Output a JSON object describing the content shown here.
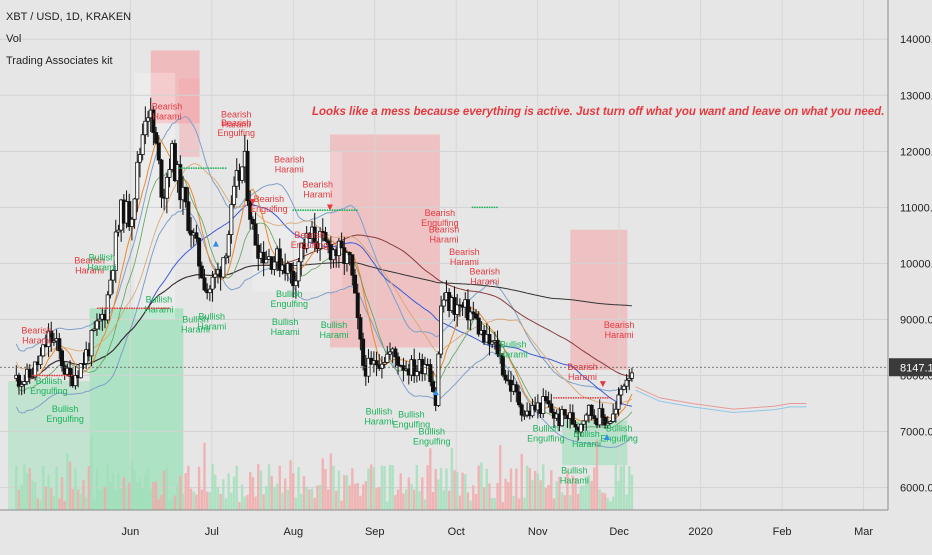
{
  "legend": {
    "symbol_line": "XBT / USD, 1D, KRAKEN",
    "volume_label": "Vol",
    "indicator_label": "Trading Associates kit"
  },
  "annotation": "Looks like a mess because everything is active. Just turn off what you want and leave on what you need.",
  "colors": {
    "background": "#e6e6e6",
    "bull_text": "#19b35a",
    "bear_text": "#e5393f",
    "bear_zone": "#f4a8ab",
    "bull_zone": "#9be0b8",
    "up_arrow": "#2f8fe8",
    "down_arrow": "#e5393f",
    "candle": "#111111",
    "price_tag_bg": "#3a3a3a"
  },
  "chart_data": {
    "type": "candlestick",
    "symbol": "XBT / USD",
    "timeframe": "1D",
    "exchange": "KRAKEN",
    "x_tick_labels": [
      "Jun",
      "Jul",
      "Aug",
      "Sep",
      "Oct",
      "Nov",
      "Dec",
      "2020",
      "Feb",
      "Mar"
    ],
    "y_tick_labels": [
      "14000.0",
      "13000.0",
      "12000.0",
      "11000.0",
      "10000.0",
      "9000.0",
      "8000.0",
      "7000.0",
      "6000.0"
    ],
    "y_ticks": [
      14000,
      13000,
      12000,
      11000,
      10000,
      9000,
      8000,
      7000,
      6000
    ],
    "ylim": [
      5600,
      14700
    ],
    "last_price": 8147.1,
    "last_price_label": "8147.1",
    "close_path": [
      {
        "month": 4.75,
        "close": 7950
      },
      {
        "month": 4.9,
        "close": 8300
      },
      {
        "month": 5.0,
        "close": 8700
      },
      {
        "month": 5.1,
        "close": 8500
      },
      {
        "month": 5.25,
        "close": 7900
      },
      {
        "month": 5.4,
        "close": 8200
      },
      {
        "month": 5.55,
        "close": 8700
      },
      {
        "month": 5.7,
        "close": 9200
      },
      {
        "month": 5.8,
        "close": 10200
      },
      {
        "month": 5.9,
        "close": 11000
      },
      {
        "month": 6.0,
        "close": 10800
      },
      {
        "month": 6.1,
        "close": 11800
      },
      {
        "month": 6.2,
        "close": 12900
      },
      {
        "month": 6.3,
        "close": 12200
      },
      {
        "month": 6.4,
        "close": 11200
      },
      {
        "month": 6.5,
        "close": 12000
      },
      {
        "month": 6.6,
        "close": 11400
      },
      {
        "month": 6.75,
        "close": 10600
      },
      {
        "month": 6.85,
        "close": 10000
      },
      {
        "month": 6.95,
        "close": 9500
      },
      {
        "month": 7.1,
        "close": 9900
      },
      {
        "month": 7.2,
        "close": 10500
      },
      {
        "month": 7.3,
        "close": 11400
      },
      {
        "month": 7.4,
        "close": 11800
      },
      {
        "month": 7.5,
        "close": 10600
      },
      {
        "month": 7.6,
        "close": 10200
      },
      {
        "month": 7.75,
        "close": 10100
      },
      {
        "month": 7.9,
        "close": 10000
      },
      {
        "month": 8.0,
        "close": 9700
      },
      {
        "month": 8.1,
        "close": 10300
      },
      {
        "month": 8.25,
        "close": 10500
      },
      {
        "month": 8.4,
        "close": 10300
      },
      {
        "month": 8.55,
        "close": 10200
      },
      {
        "month": 8.7,
        "close": 10000
      },
      {
        "month": 8.8,
        "close": 8800
      },
      {
        "month": 8.85,
        "close": 8200
      },
      {
        "month": 8.95,
        "close": 8100
      },
      {
        "month": 9.05,
        "close": 8300
      },
      {
        "month": 9.2,
        "close": 8400
      },
      {
        "month": 9.35,
        "close": 8200
      },
      {
        "month": 9.5,
        "close": 8100
      },
      {
        "month": 9.65,
        "close": 8300
      },
      {
        "month": 9.75,
        "close": 7500
      },
      {
        "month": 9.82,
        "close": 9400
      },
      {
        "month": 9.9,
        "close": 9300
      },
      {
        "month": 10.05,
        "close": 9200
      },
      {
        "month": 10.2,
        "close": 9100
      },
      {
        "month": 10.35,
        "close": 8600
      },
      {
        "month": 10.5,
        "close": 8500
      },
      {
        "month": 10.6,
        "close": 8000
      },
      {
        "month": 10.75,
        "close": 7600
      },
      {
        "month": 10.85,
        "close": 7300
      },
      {
        "month": 10.95,
        "close": 7400
      },
      {
        "month": 11.1,
        "close": 7500
      },
      {
        "month": 11.25,
        "close": 7200
      },
      {
        "month": 11.35,
        "close": 7300
      },
      {
        "month": 11.5,
        "close": 7100
      },
      {
        "month": 11.6,
        "close": 7400
      },
      {
        "month": 11.7,
        "close": 7300
      },
      {
        "month": 11.85,
        "close": 7200
      },
      {
        "month": 11.95,
        "close": 7300
      },
      {
        "month": 12.05,
        "close": 7900
      },
      {
        "month": 12.15,
        "close": 8147
      }
    ],
    "annotations": {
      "bearish_harami": [
        [
          4.85,
          8750
        ],
        [
          5.5,
          10000
        ],
        [
          6.45,
          12750
        ],
        [
          7.3,
          12600
        ],
        [
          7.95,
          11800
        ],
        [
          9.85,
          10550
        ],
        [
          10.1,
          10150
        ],
        [
          10.35,
          9800
        ],
        [
          12.0,
          8850
        ],
        [
          11.55,
          8100
        ],
        [
          8.3,
          11350
        ]
      ],
      "bearish_engulfing": [
        [
          7.3,
          12450
        ],
        [
          9.8,
          10850
        ],
        [
          8.2,
          10450
        ],
        [
          7.7,
          11100
        ]
      ],
      "bullish_harami": [
        [
          5.65,
          10050
        ],
        [
          6.35,
          9300
        ],
        [
          7.0,
          9000
        ],
        [
          7.9,
          8900
        ],
        [
          8.5,
          8850
        ],
        [
          9.05,
          7300
        ],
        [
          10.7,
          8500
        ],
        [
          11.45,
          6250
        ],
        [
          11.6,
          6900
        ],
        [
          6.8,
          8950
        ]
      ],
      "bullish_engulfing": [
        [
          5.2,
          7350
        ],
        [
          5.0,
          7850
        ],
        [
          9.45,
          7250
        ],
        [
          9.7,
          6950
        ],
        [
          11.1,
          7000
        ],
        [
          12.0,
          7000
        ],
        [
          7.95,
          9400
        ]
      ],
      "short_labels": [
        [
          7.5,
          11150
        ],
        [
          8.45,
          11050
        ],
        [
          11.8,
          7900
        ]
      ],
      "long_labels": [
        [
          9.75,
          7650
        ],
        [
          11.85,
          6850
        ],
        [
          7.05,
          10300
        ]
      ]
    }
  }
}
